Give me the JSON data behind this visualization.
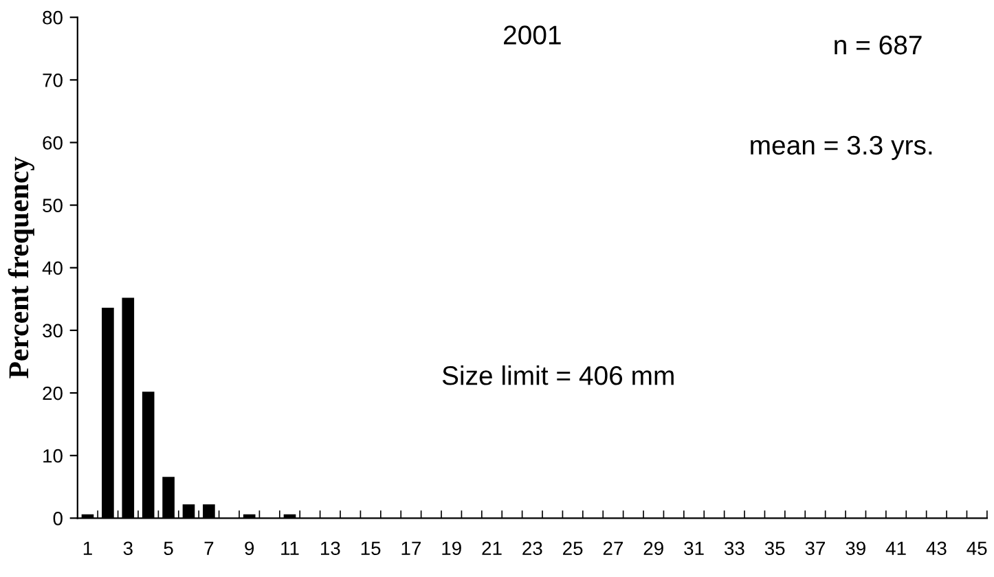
{
  "chart_data": {
    "type": "bar",
    "ylabel": "Percent frequency",
    "categories": [
      "1",
      null,
      "3",
      null,
      "5",
      null,
      "7",
      null,
      "9",
      null,
      "11",
      null,
      "13",
      null,
      "15",
      null,
      "17",
      null,
      "19",
      null,
      "21",
      null,
      "23",
      null,
      "25",
      null,
      "27",
      null,
      "29",
      null,
      "31",
      null,
      "33",
      null,
      "35",
      null,
      "37",
      null,
      "39",
      null,
      "41",
      null,
      "43",
      null,
      "45"
    ],
    "values": [
      0.6,
      33.6,
      35.2,
      20.2,
      6.6,
      2.2,
      2.2,
      0,
      0.6,
      0,
      0.6,
      0,
      0,
      0,
      0,
      0,
      0,
      0,
      0,
      0,
      0,
      0,
      0,
      0,
      0,
      0,
      0,
      0,
      0,
      0,
      0,
      0,
      0,
      0,
      0,
      0,
      0,
      0,
      0,
      0,
      0,
      0,
      0,
      0,
      0
    ],
    "color": "#000000",
    "ylim": [
      0,
      80
    ],
    "yticks": [
      0,
      10,
      20,
      30,
      40,
      50,
      60,
      70,
      80
    ],
    "annotations": [
      "2001",
      "n = 687",
      "mean = 3.3 yrs.",
      "Size limit = 406 mm"
    ],
    "grid": false,
    "legend": false
  }
}
